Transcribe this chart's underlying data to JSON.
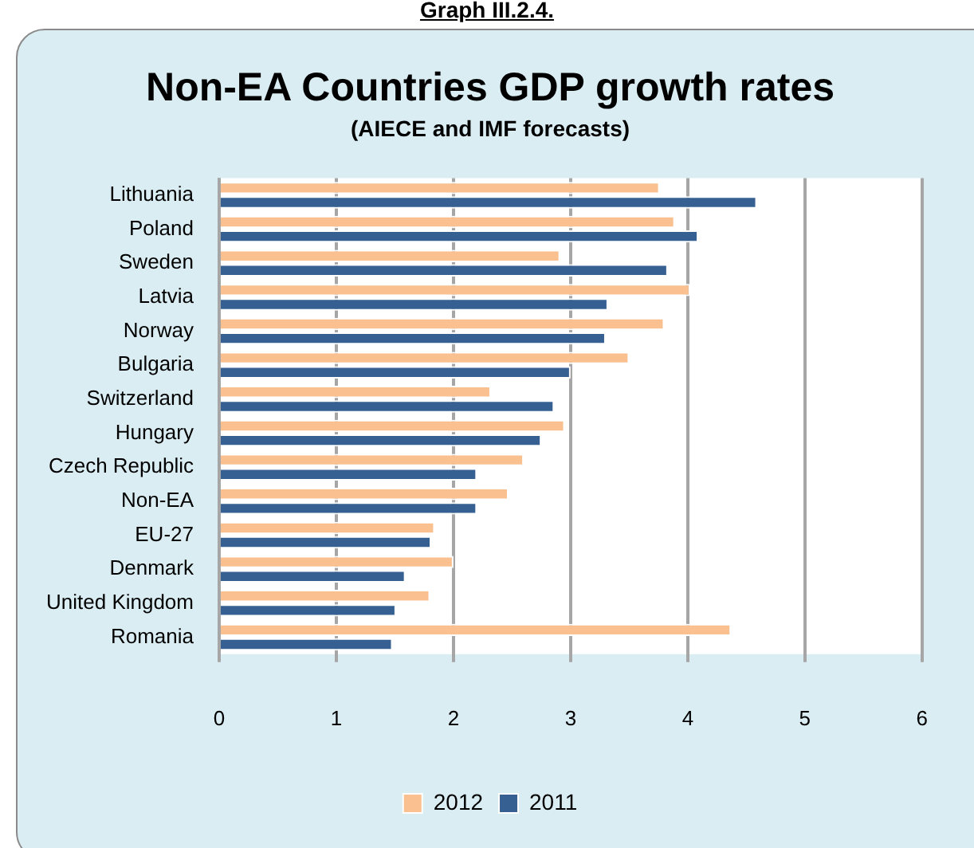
{
  "chart_data": {
    "type": "bar",
    "orientation": "horizontal",
    "title": "Non-EA Countries GDP growth rates",
    "subtitle": "(AIECE and IMF forecasts)",
    "annotations": [
      "Graph III.2.4."
    ],
    "categories": [
      "Lithuania",
      "Poland",
      "Sweden",
      "Latvia",
      "Norway",
      "Bulgaria",
      "Switzerland",
      "Hungary",
      "Czech Republic",
      "Non-EA",
      "EU-27",
      "Denmark",
      "United Kingdom",
      "Romania"
    ],
    "series": [
      {
        "name": "2012",
        "color": "#fac090",
        "values": [
          3.76,
          3.89,
          2.91,
          4.02,
          3.8,
          3.5,
          2.32,
          2.95,
          2.6,
          2.47,
          1.84,
          2.0,
          1.8,
          4.37
        ]
      },
      {
        "name": "2011",
        "color": "#376092",
        "values": [
          4.59,
          4.09,
          3.83,
          3.32,
          3.3,
          3.0,
          2.86,
          2.75,
          2.2,
          2.2,
          1.81,
          1.59,
          1.51,
          1.48
        ]
      }
    ],
    "xlim": [
      0,
      6
    ],
    "xticks": [
      0,
      1,
      2,
      3,
      4,
      5,
      6
    ],
    "grid": "x",
    "legend": "bottom"
  }
}
